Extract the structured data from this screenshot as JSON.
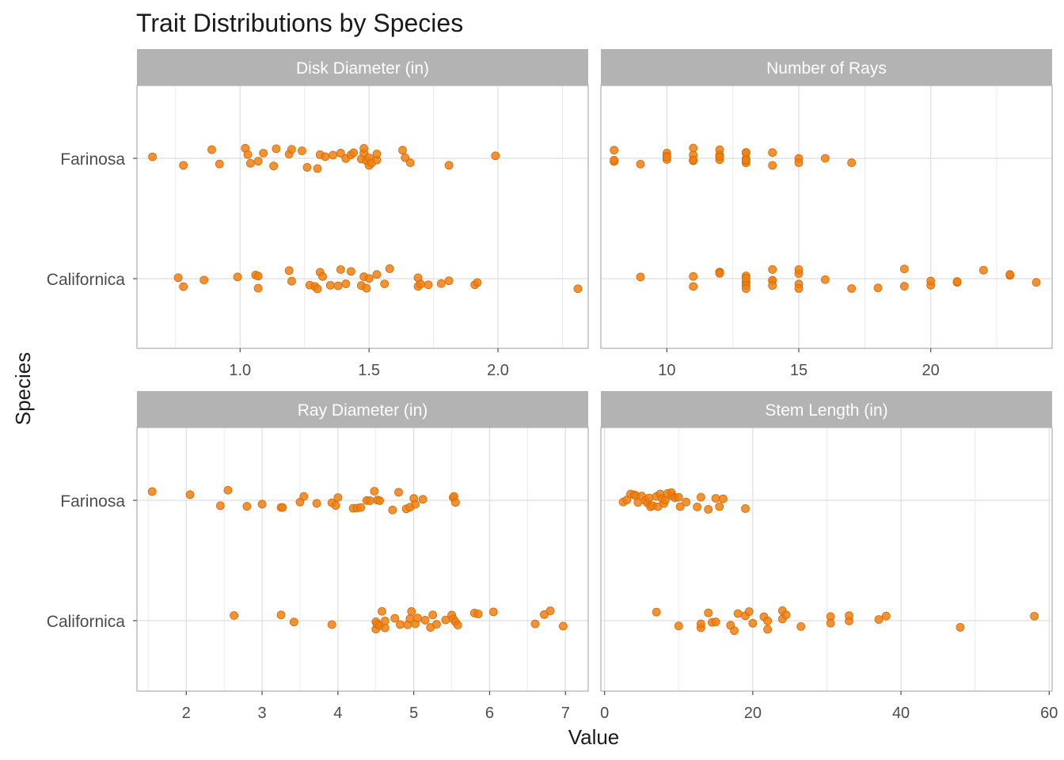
{
  "chart_data": {
    "type": "scatter",
    "title": "Trait Distributions by Species",
    "xlabel": "Value",
    "ylabel": "Species",
    "categories": [
      "Farinosa",
      "Californica"
    ],
    "point_color": "#F07F10",
    "strip_color": "#B3B3B3",
    "grid": true,
    "facets": [
      {
        "label": "Disk Diameter (in)",
        "xlim": [
          0.6,
          2.35
        ],
        "xticks": [
          1.0,
          1.5,
          2.0
        ],
        "xtick_labels": [
          "1.0",
          "1.5",
          "2.0"
        ],
        "series": [
          {
            "category": "Farinosa",
            "x": [
              0.66,
              0.78,
              0.89,
              0.92,
              1.02,
              1.03,
              1.04,
              1.07,
              1.09,
              1.13,
              1.14,
              1.19,
              1.2,
              1.24,
              1.26,
              1.3,
              1.31,
              1.33,
              1.36,
              1.39,
              1.41,
              1.43,
              1.44,
              1.47,
              1.48,
              1.48,
              1.49,
              1.5,
              1.5,
              1.51,
              1.53,
              1.53,
              1.63,
              1.64,
              1.66,
              1.81,
              1.99
            ]
          },
          {
            "category": "Californica",
            "x": [
              0.76,
              0.78,
              0.86,
              0.99,
              1.06,
              1.07,
              1.07,
              1.19,
              1.2,
              1.27,
              1.29,
              1.3,
              1.31,
              1.32,
              1.35,
              1.38,
              1.39,
              1.41,
              1.43,
              1.47,
              1.48,
              1.49,
              1.5,
              1.53,
              1.56,
              1.58,
              1.69,
              1.69,
              1.7,
              1.73,
              1.78,
              1.81,
              1.91,
              1.92,
              2.31
            ]
          }
        ]
      },
      {
        "label": "Number of Rays",
        "xlim": [
          7.5,
          24.6
        ],
        "xticks": [
          10,
          15,
          20
        ],
        "xtick_labels": [
          "10",
          "15",
          "20"
        ],
        "series": [
          {
            "category": "Farinosa",
            "x": [
              8,
              8,
              8,
              9,
              10,
              10,
              10,
              10,
              11,
              11,
              11,
              11,
              11,
              12,
              12,
              12,
              12,
              12,
              13,
              13,
              13,
              13,
              13,
              13,
              13,
              13,
              14,
              14,
              15,
              15,
              16,
              17
            ]
          },
          {
            "category": "Californica",
            "x": [
              9,
              11,
              11,
              12,
              12,
              12,
              13,
              13,
              13,
              13,
              13,
              13,
              14,
              14,
              14,
              14,
              15,
              15,
              15,
              15,
              16,
              17,
              18,
              19,
              19,
              20,
              20,
              21,
              21,
              22,
              23,
              23,
              24
            ]
          }
        ]
      },
      {
        "label": "Ray Diameter (in)",
        "xlim": [
          1.35,
          7.3
        ],
        "xticks": [
          2,
          3,
          4,
          5,
          6,
          7
        ],
        "xtick_labels": [
          "2",
          "3",
          "4",
          "5",
          "6",
          "7"
        ],
        "series": [
          {
            "category": "Farinosa",
            "x": [
              1.55,
              2.05,
              2.45,
              2.55,
              2.8,
              3.0,
              3.25,
              3.27,
              3.5,
              3.55,
              3.72,
              3.92,
              3.97,
              4.0,
              4.2,
              4.25,
              4.3,
              4.38,
              4.42,
              4.48,
              4.52,
              4.55,
              4.72,
              4.8,
              4.9,
              4.95,
              5.0,
              5.02,
              5.12,
              5.52,
              5.53,
              5.55
            ]
          },
          {
            "category": "Californica",
            "x": [
              2.63,
              3.25,
              3.42,
              3.92,
              4.5,
              4.5,
              4.52,
              4.55,
              4.58,
              4.62,
              4.62,
              4.75,
              4.82,
              4.92,
              4.95,
              4.97,
              5.02,
              5.05,
              5.15,
              5.22,
              5.25,
              5.3,
              5.42,
              5.5,
              5.52,
              5.55,
              5.58,
              5.8,
              5.85,
              6.05,
              6.6,
              6.72,
              6.8,
              6.97
            ]
          }
        ]
      },
      {
        "label": "Stem Length (in)",
        "xlim": [
          -0.5,
          60.4
        ],
        "xticks": [
          0,
          20,
          40,
          60
        ],
        "xtick_labels": [
          "0",
          "20",
          "40",
          "60"
        ],
        "series": [
          {
            "category": "Farinosa",
            "x": [
              2.5,
              3.0,
              3.5,
              4.0,
              4.2,
              4.5,
              5.0,
              5.5,
              5.8,
              6.0,
              6.2,
              6.5,
              7.0,
              7.2,
              7.5,
              7.8,
              8.0,
              8.2,
              8.5,
              9.0,
              9.2,
              9.5,
              10.0,
              10.2,
              11.0,
              12.5,
              13.0,
              14.0,
              15.0,
              15.5,
              16.0,
              19.0
            ]
          },
          {
            "category": "Californica",
            "x": [
              7.0,
              10.0,
              13.0,
              13.0,
              14.0,
              14.5,
              15.0,
              17.0,
              17.5,
              18.0,
              19.0,
              19.5,
              20.0,
              21.5,
              22.0,
              22.0,
              24.0,
              24.0,
              24.5,
              26.5,
              30.5,
              30.5,
              33.0,
              33.0,
              37.0,
              38.0,
              48.0,
              58.0
            ]
          }
        ]
      }
    ]
  }
}
